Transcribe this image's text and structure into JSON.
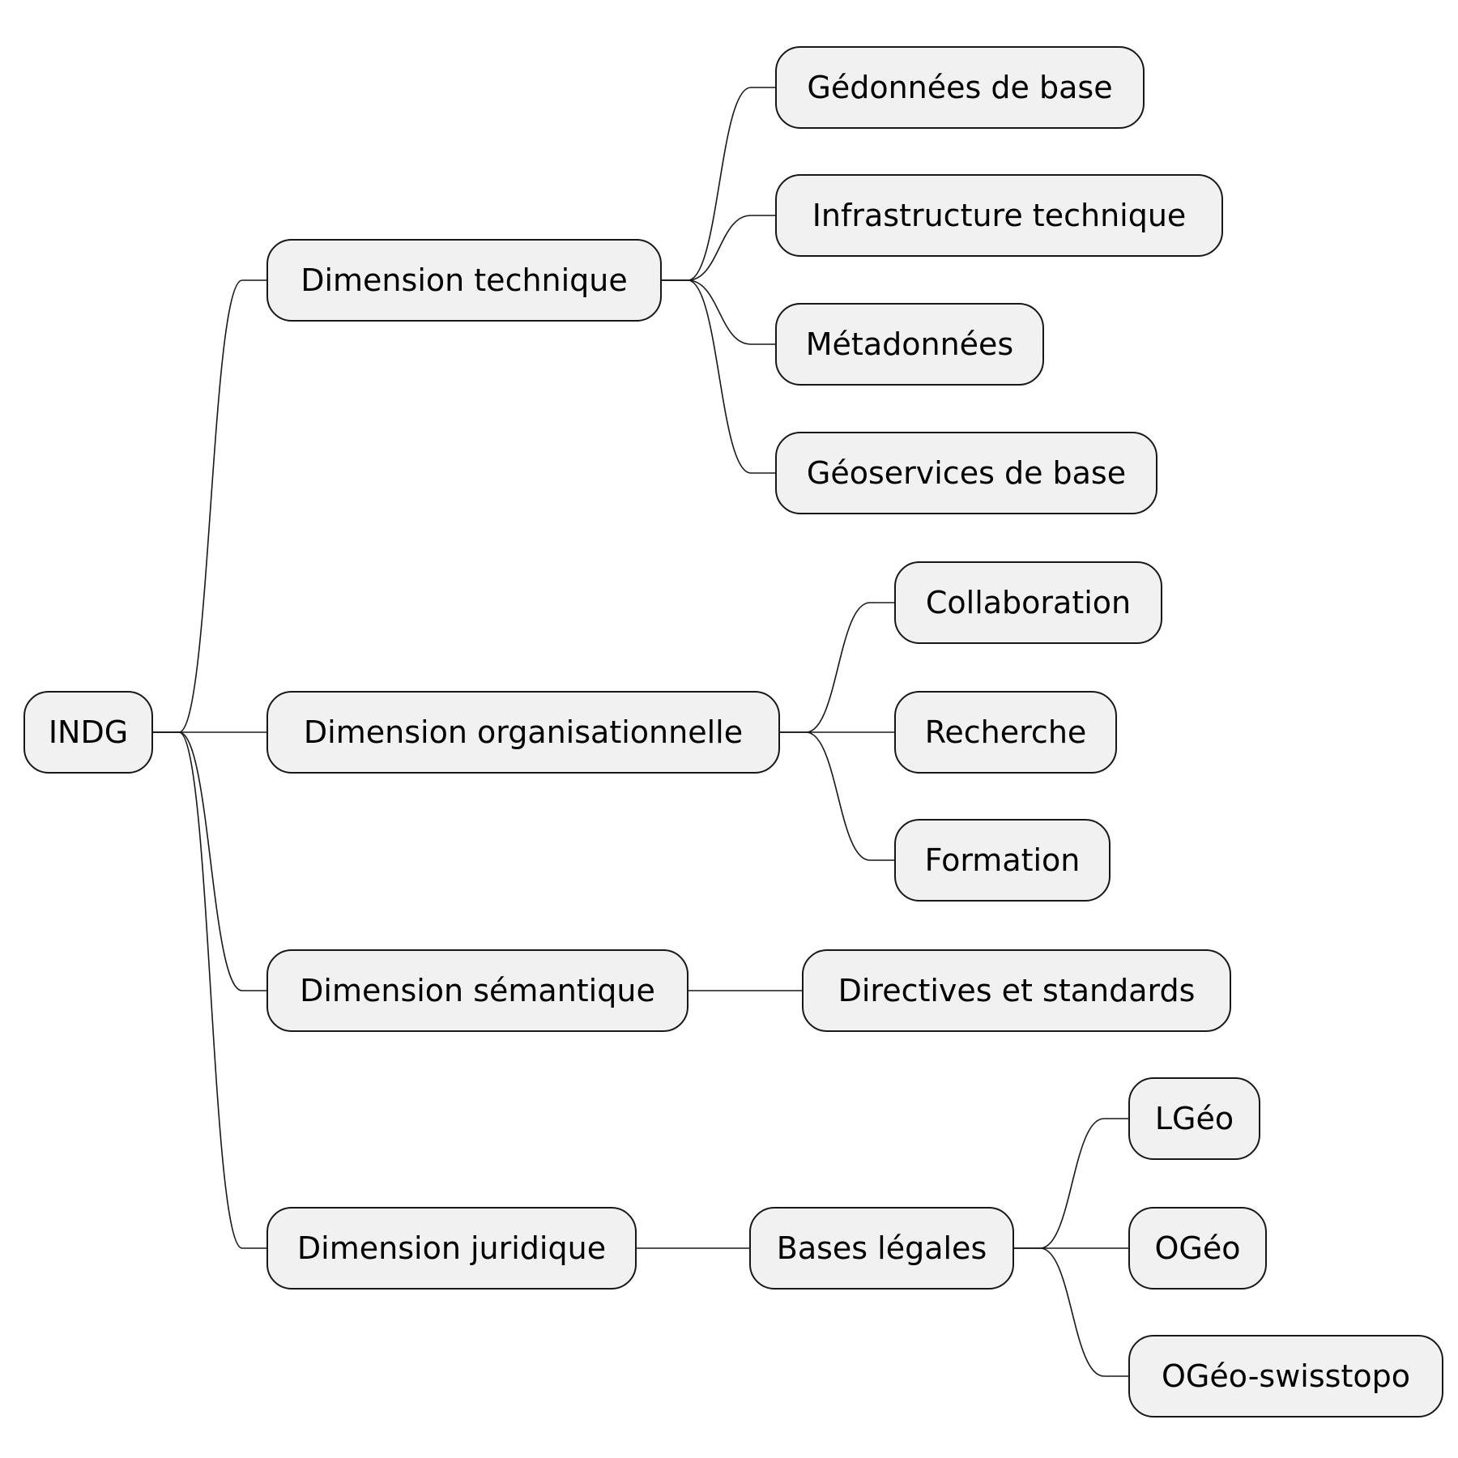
{
  "diagram": {
    "type": "mindmap",
    "root": {
      "id": "indg",
      "label": "INDG",
      "children": [
        {
          "id": "dim-technique",
          "label": "Dimension technique",
          "children": [
            {
              "id": "geodonnees",
              "label": "Gédonnées de base"
            },
            {
              "id": "infrastructure",
              "label": "Infrastructure technique"
            },
            {
              "id": "metadonnees",
              "label": "Métadonnées"
            },
            {
              "id": "geoservices",
              "label": "Géoservices de base"
            }
          ]
        },
        {
          "id": "dim-organisationnelle",
          "label": "Dimension organisationnelle",
          "children": [
            {
              "id": "collaboration",
              "label": "Collaboration"
            },
            {
              "id": "recherche",
              "label": "Recherche"
            },
            {
              "id": "formation",
              "label": "Formation"
            }
          ]
        },
        {
          "id": "dim-semantique",
          "label": "Dimension sémantique",
          "children": [
            {
              "id": "directives",
              "label": "Directives et standards"
            }
          ]
        },
        {
          "id": "dim-juridique",
          "label": "Dimension juridique",
          "children": [
            {
              "id": "bases-legales",
              "label": "Bases légales",
              "children": [
                {
                  "id": "lgeo",
                  "label": "LGéo"
                },
                {
                  "id": "ogeo",
                  "label": "OGéo"
                },
                {
                  "id": "ogeo-swisstopo",
                  "label": "OGéo-swisstopo"
                }
              ]
            }
          ]
        }
      ]
    }
  }
}
